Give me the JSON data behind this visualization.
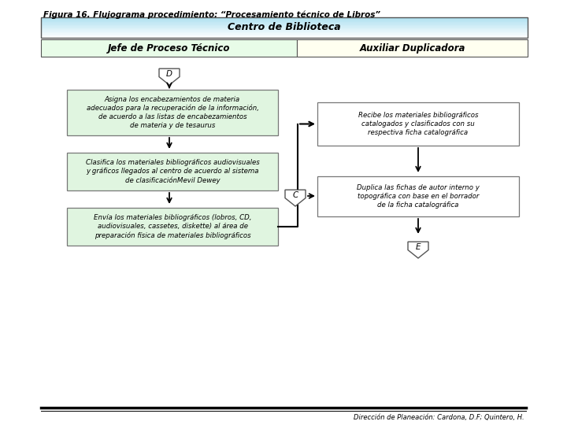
{
  "title": "Figura 16. Flujograma procedimiento: “Procesamiento técnico de Libros”",
  "footer": "Dirección de Planeación: Cardona, D.F; Quintero, H.",
  "header_main": "Centro de Biblioteca",
  "header_col1": "Jefe de Proceso Técnico",
  "header_col2": "Auxiliar Duplicadora",
  "connector_D": "D",
  "connector_C": "C",
  "connector_E": "E",
  "box1_text": "Asigna los encabezamientos de materia\nadecuados para la recuperación de la información,\nde acuerdo a las listas de encabezamientos\nde materia y de tesaurus",
  "box2_text": "Clasifica los materiales bibliográficos audiovisuales\ny gráficos llegados al centro de acuerdo al sistema\nde clasificaciónMevil Dewey",
  "box3_text": "Envía los materiales bibliográficos (lobros, CD,\naudiovisuales, cassetes, diskette) al área de\npreparación física de materiales bibliográficos",
  "box4_text": "Recibe los materiales bibliográficos\ncatalogados y clasificados con su\nrespectiva ficha catalográfica",
  "box5_text": "Duplica las fichas de autor interno y\ntopográfica con base en el borrador\nde la ficha catalográfica",
  "bg_color": "#ffffff",
  "header_main_bg_top": "#a8dff0",
  "header_main_bg_bot": "#e8f8ff",
  "header_col1_bg": "#e8fce8",
  "header_col2_bg": "#fffff0",
  "box_left_bg": "#e0f5e0",
  "box_right_bg": "#ffffff",
  "box_border": "#666666",
  "arrow_color": "#000000"
}
